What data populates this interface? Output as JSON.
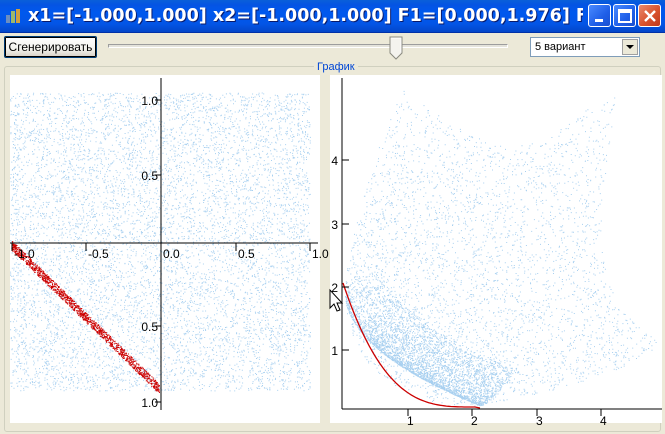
{
  "window": {
    "title": "x1=[-1.000,1.000] x2=[-1.000,1.000]  F1=[0.000,1.976]  F...",
    "buttons": [
      "minimize",
      "maximize",
      "close"
    ]
  },
  "toolbar": {
    "generate_label": "Сгенерировать",
    "slider_value_fraction": 0.72,
    "variant_value": "5 вариант"
  },
  "group": {
    "caption": "График"
  },
  "left_plot": {
    "x_ticks": [
      "-1.0",
      "-0.5",
      "0.0",
      "0.5",
      "1.0"
    ],
    "y_ticks_top": [
      "1.0",
      "0.5"
    ],
    "y_ticks_bottom": [
      "0.5",
      "1.0"
    ]
  },
  "right_plot": {
    "x_ticks": [
      "1",
      "2",
      "3",
      "4"
    ],
    "y_ticks": [
      "1",
      "2",
      "3",
      "4"
    ]
  },
  "colors": {
    "titlebar": "#0058EE",
    "scatter": "#A8D0F0",
    "pareto": "#CC0000",
    "axis": "#000000",
    "plot_bg": "#FFFFFF"
  }
}
